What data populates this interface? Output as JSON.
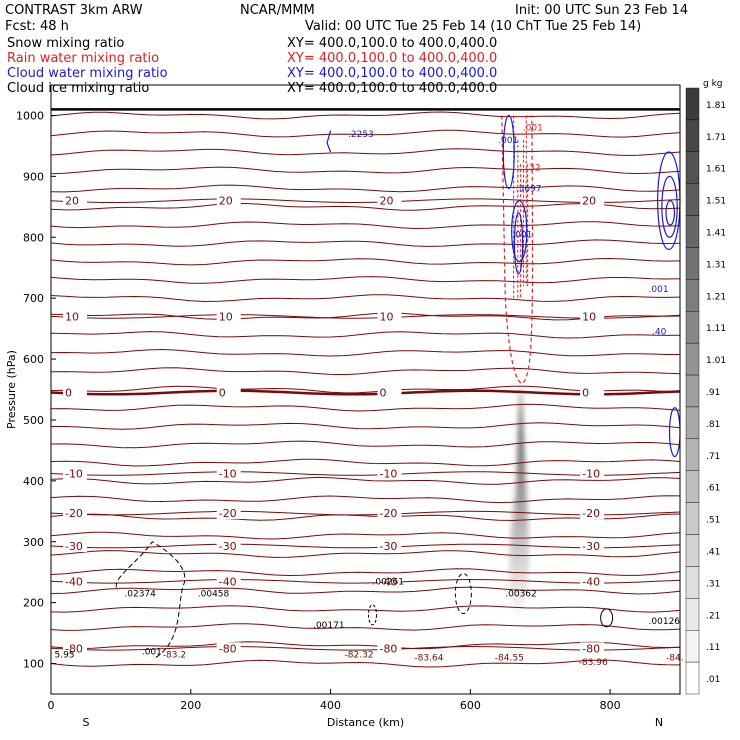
{
  "header": {
    "model": "CONTRAST  3km ARW",
    "org": "NCAR/MMM",
    "init": "Init: 00 UTC Sun 23 Feb 14",
    "fcst": "Fcst:    48 h",
    "valid": "Valid: 00 UTC Tue 25 Feb 14 (10 ChT Tue 25 Feb 14)"
  },
  "legend": [
    {
      "label": "Snow mixing ratio",
      "xy": "XY=  400.0,100.0 to 400.0,400.0",
      "color": "#000000"
    },
    {
      "label": "Rain water mixing ratio",
      "xy": "XY=  400.0,100.0 to 400.0,400.0",
      "color": "#e02020"
    },
    {
      "label": "Cloud water mixing ratio",
      "xy": "XY=  400.0,100.0 to 400.0,400.0",
      "color": "#1a1ad0"
    },
    {
      "label": "Cloud ice mixing ratio",
      "xy": "XY=  400.0,100.0 to 400.0,400.0",
      "color": "#000000"
    }
  ],
  "chart_data": {
    "type": "contour-cross-section",
    "xlabel": "Distance (km)",
    "ylabel": "Pressure (hPa)",
    "xlim": [
      0,
      900
    ],
    "ylim": [
      1050,
      50
    ],
    "x_ticks": [
      0,
      200,
      400,
      600,
      800
    ],
    "y_ticks": [
      100,
      200,
      300,
      400,
      500,
      600,
      700,
      800,
      900,
      1000
    ],
    "x_end_labels": {
      "left": "S",
      "right": "N"
    },
    "isotherms": [
      {
        "label": "-80",
        "p": 125
      },
      {
        "label": "-40",
        "p": 235
      },
      {
        "label": "-30",
        "p": 293
      },
      {
        "label": "-20",
        "p": 347
      },
      {
        "label": "-10",
        "p": 412
      },
      {
        "label": "0",
        "p": 545,
        "bold": true
      },
      {
        "label": "10",
        "p": 670
      },
      {
        "label": "20",
        "p": 860
      }
    ],
    "extrema": [
      {
        "text": "-83.2",
        "x": 160,
        "p": 110
      },
      {
        "text": "-82.32",
        "x": 420,
        "p": 110
      },
      {
        "text": "-83.64",
        "x": 520,
        "p": 105
      },
      {
        "text": "-84.55",
        "x": 635,
        "p": 105
      },
      {
        "text": "-83.96",
        "x": 755,
        "p": 98
      },
      {
        "text": "-84.",
        "x": 880,
        "p": 105
      },
      {
        "text": "5.95",
        "x": 5,
        "p": 110
      },
      {
        "text": ".00171",
        "x": 375,
        "p": 158
      },
      {
        "text": ".02374",
        "x": 105,
        "p": 210
      },
      {
        "text": ".00458",
        "x": 210,
        "p": 210
      },
      {
        "text": ".00261",
        "x": 460,
        "p": 230
      },
      {
        "text": ".00362",
        "x": 650,
        "p": 210
      },
      {
        "text": ".00126",
        "x": 855,
        "p": 165
      },
      {
        "text": ".3697",
        "x": 665,
        "p": 875
      },
      {
        "text": ".2253",
        "x": 425,
        "p": 965
      },
      {
        "text": ".001",
        "x": 130,
        "p": 115
      },
      {
        "text": ".001",
        "x": 660,
        "p": 800
      },
      {
        "text": ".001",
        "x": 640,
        "p": 955
      },
      {
        "text": ".001",
        "x": 675,
        "p": 975
      },
      {
        "text": ".32",
        "x": 680,
        "p": 910
      },
      {
        "text": ".40",
        "x": 860,
        "p": 640
      },
      {
        "text": ".001",
        "x": 855,
        "p": 710
      }
    ],
    "colorbar": {
      "title": "g kg",
      "labels": [
        "1.81",
        "1.71",
        "1.61",
        "1.51",
        "1.41",
        "1.31",
        "1.21",
        "1.11",
        "1.01",
        ".91",
        ".81",
        ".71",
        ".61",
        ".51",
        ".41",
        ".31",
        ".21",
        ".11",
        ".01"
      ]
    }
  }
}
